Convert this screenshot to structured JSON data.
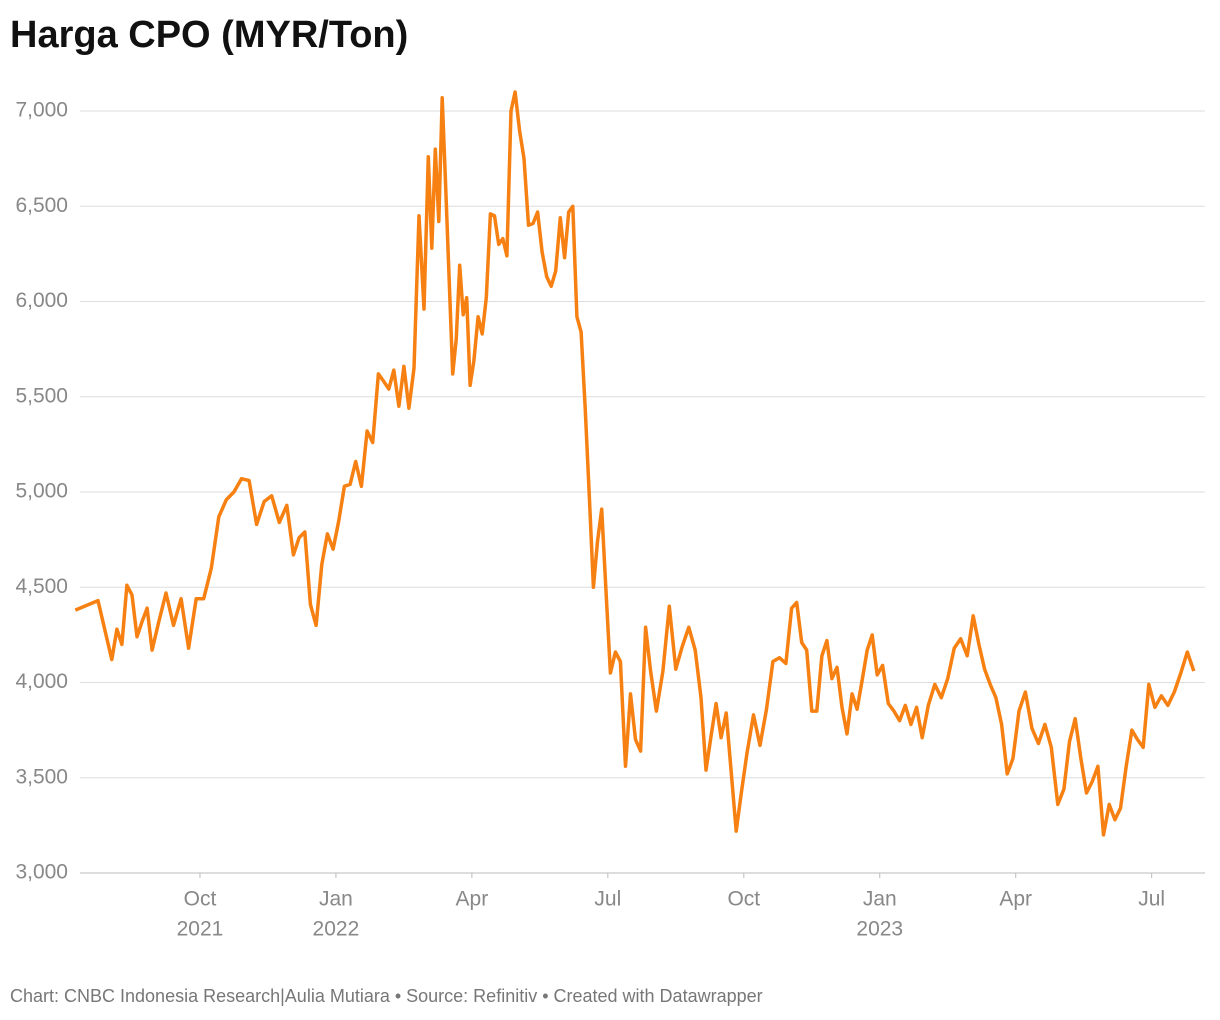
{
  "chart_data": {
    "type": "line",
    "title": "Harga CPO (MYR/Ton)",
    "footer": "Chart: CNBC Indonesia Research|Aulia Mutiara • Source: Refinitiv • Created with Datawrapper",
    "x": [
      "2021-07",
      "2021-07",
      "2021-08",
      "2021-08",
      "2021-08",
      "2021-08",
      "2021-08",
      "2021-08",
      "2021-08",
      "2021-08",
      "2021-08",
      "2021-09",
      "2021-09",
      "2021-09",
      "2021-09",
      "2021-09",
      "2021-09",
      "2021-10",
      "2021-10",
      "2021-10",
      "2021-10",
      "2021-10",
      "2021-10",
      "2021-11",
      "2021-11",
      "2021-11",
      "2021-11",
      "2021-11",
      "2021-11",
      "2021-12",
      "2021-12",
      "2021-12",
      "2021-12",
      "2021-12",
      "2021-12",
      "2021-12",
      "2021-12",
      "2022-01",
      "2022-01",
      "2022-01",
      "2022-01",
      "2022-01",
      "2022-01",
      "2022-01",
      "2022-01",
      "2022-02",
      "2022-02",
      "2022-02",
      "2022-02",
      "2022-02",
      "2022-02",
      "2022-02",
      "2022-02",
      "2022-02",
      "2022-03",
      "2022-03",
      "2022-03",
      "2022-03",
      "2022-03",
      "2022-03",
      "2022-03",
      "2022-03",
      "2022-03",
      "2022-03",
      "2022-03",
      "2022-03",
      "2022-03",
      "2022-04",
      "2022-04",
      "2022-04",
      "2022-04",
      "2022-04",
      "2022-04",
      "2022-04",
      "2022-04",
      "2022-04",
      "2022-04",
      "2022-04",
      "2022-05",
      "2022-05",
      "2022-05",
      "2022-05",
      "2022-05",
      "2022-05",
      "2022-05",
      "2022-05",
      "2022-05",
      "2022-05",
      "2022-06",
      "2022-06",
      "2022-06",
      "2022-06",
      "2022-06",
      "2022-06",
      "2022-06",
      "2022-06",
      "2022-06",
      "2022-06",
      "2022-06",
      "2022-07",
      "2022-07",
      "2022-07",
      "2022-07",
      "2022-07",
      "2022-07",
      "2022-07",
      "2022-07",
      "2022-07",
      "2022-08",
      "2022-08",
      "2022-08",
      "2022-08",
      "2022-08",
      "2022-08",
      "2022-08",
      "2022-09",
      "2022-09",
      "2022-09",
      "2022-09",
      "2022-09",
      "2022-09",
      "2022-09",
      "2022-09",
      "2022-09",
      "2022-10",
      "2022-10",
      "2022-10",
      "2022-10",
      "2022-10",
      "2022-10",
      "2022-10",
      "2022-11",
      "2022-11",
      "2022-11",
      "2022-11",
      "2022-11",
      "2022-11",
      "2022-11",
      "2022-11",
      "2022-11",
      "2022-12",
      "2022-12",
      "2022-12",
      "2022-12",
      "2022-12",
      "2022-12",
      "2022-12",
      "2022-12",
      "2022-12",
      "2023-01",
      "2023-01",
      "2023-01",
      "2023-01",
      "2023-01",
      "2023-01",
      "2023-01",
      "2023-01",
      "2023-02",
      "2023-02",
      "2023-02",
      "2023-02",
      "2023-02",
      "2023-02",
      "2023-02",
      "2023-03",
      "2023-03",
      "2023-03",
      "2023-03",
      "2023-03",
      "2023-03",
      "2023-03",
      "2023-03",
      "2023-04",
      "2023-04",
      "2023-04",
      "2023-04",
      "2023-04",
      "2023-04",
      "2023-04",
      "2023-05",
      "2023-05",
      "2023-05",
      "2023-05",
      "2023-05",
      "2023-05",
      "2023-05",
      "2023-05",
      "2023-06",
      "2023-06",
      "2023-06",
      "2023-06",
      "2023-06",
      "2023-06",
      "2023-06",
      "2023-06",
      "2023-07",
      "2023-07",
      "2023-07",
      "2023-07",
      "2023-07",
      "2023-07",
      "2023-07"
    ],
    "series": [
      {
        "name": "Harga CPO",
        "color": "#f68012",
        "values": [
          4380,
          4430,
          4120,
          4280,
          4200,
          4510,
          4460,
          4240,
          4320,
          4390,
          4170,
          4310,
          4470,
          4300,
          4440,
          4180,
          4440,
          4440,
          4600,
          4870,
          4960,
          5000,
          5070,
          5060,
          4830,
          4950,
          4980,
          4840,
          4930,
          4670,
          4760,
          4790,
          4410,
          4300,
          4620,
          4780,
          4700,
          4850,
          5030,
          5040,
          5160,
          5030,
          5320,
          5260,
          5620,
          5580,
          5540,
          5640,
          5450,
          5660,
          5440,
          5650,
          6450,
          5960,
          6760,
          6280,
          6800,
          6420,
          7070,
          6600,
          6110,
          5620,
          5800,
          6190,
          5930,
          6020,
          5560,
          5690,
          5920,
          5830,
          6020,
          6460,
          6450,
          6300,
          6330,
          6240,
          7000,
          7100,
          6900,
          6750,
          6400,
          6410,
          6470,
          6260,
          6130,
          6080,
          6160,
          6440,
          6230,
          6470,
          6500,
          5920,
          5840,
          5440,
          4980,
          4500,
          4740,
          4910,
          4500,
          4050,
          4160,
          4110,
          3560,
          3940,
          3700,
          3640,
          4290,
          4060,
          3850,
          4060,
          4400,
          4070,
          4190,
          4290,
          4170,
          3920,
          3540,
          3720,
          3890,
          3710,
          3840,
          3530,
          3220,
          3420,
          3630,
          3830,
          3670,
          3860,
          4110,
          4130,
          4100,
          4390,
          4420,
          4210,
          4170,
          3850,
          3850,
          4140,
          4220,
          4020,
          4080,
          3870,
          3730,
          3940,
          3860,
          4010,
          4170,
          4250,
          4040,
          4090,
          3890,
          3850,
          3800,
          3880,
          3780,
          3870,
          3710,
          3880,
          3990,
          3920,
          4020,
          4180,
          4230,
          4140,
          4350,
          4200,
          4070,
          3990,
          3920,
          3780,
          3520,
          3600,
          3850,
          3950,
          3760,
          3680,
          3780,
          3660,
          3360,
          3440,
          3690,
          3810,
          3600,
          3420,
          3480,
          3560,
          3200,
          3360,
          3280,
          3340,
          3560,
          3750,
          3700,
          3660,
          3990,
          3870,
          3930,
          3880,
          3950,
          4050,
          4160,
          4060
        ]
      }
    ],
    "xlim": [
      "2021-07",
      "2023-08"
    ],
    "xticks": [
      {
        "value": "2021-10",
        "label": [
          "Oct",
          "2021"
        ]
      },
      {
        "value": "2022-01",
        "label": [
          "Jan",
          "2022"
        ]
      },
      {
        "value": "2022-04",
        "label": [
          "Apr"
        ]
      },
      {
        "value": "2022-07",
        "label": [
          "Jul"
        ]
      },
      {
        "value": "2022-10",
        "label": [
          "Oct"
        ]
      },
      {
        "value": "2023-01",
        "label": [
          "Jan",
          "2023"
        ]
      },
      {
        "value": "2023-04",
        "label": [
          "Apr"
        ]
      },
      {
        "value": "2023-07",
        "label": [
          "Jul"
        ]
      }
    ],
    "ylim": [
      3000,
      7000
    ],
    "yticks": [
      {
        "value": 3000,
        "label": "3,000"
      },
      {
        "value": 3500,
        "label": "3,500"
      },
      {
        "value": 4000,
        "label": "4,000"
      },
      {
        "value": 4500,
        "label": "4,500"
      },
      {
        "value": 5000,
        "label": "5,000"
      },
      {
        "value": 5500,
        "label": "5,500"
      },
      {
        "value": 6000,
        "label": "6,000"
      },
      {
        "value": 6500,
        "label": "6,500"
      },
      {
        "value": 7000,
        "label": "7,000"
      }
    ],
    "grid": true
  }
}
